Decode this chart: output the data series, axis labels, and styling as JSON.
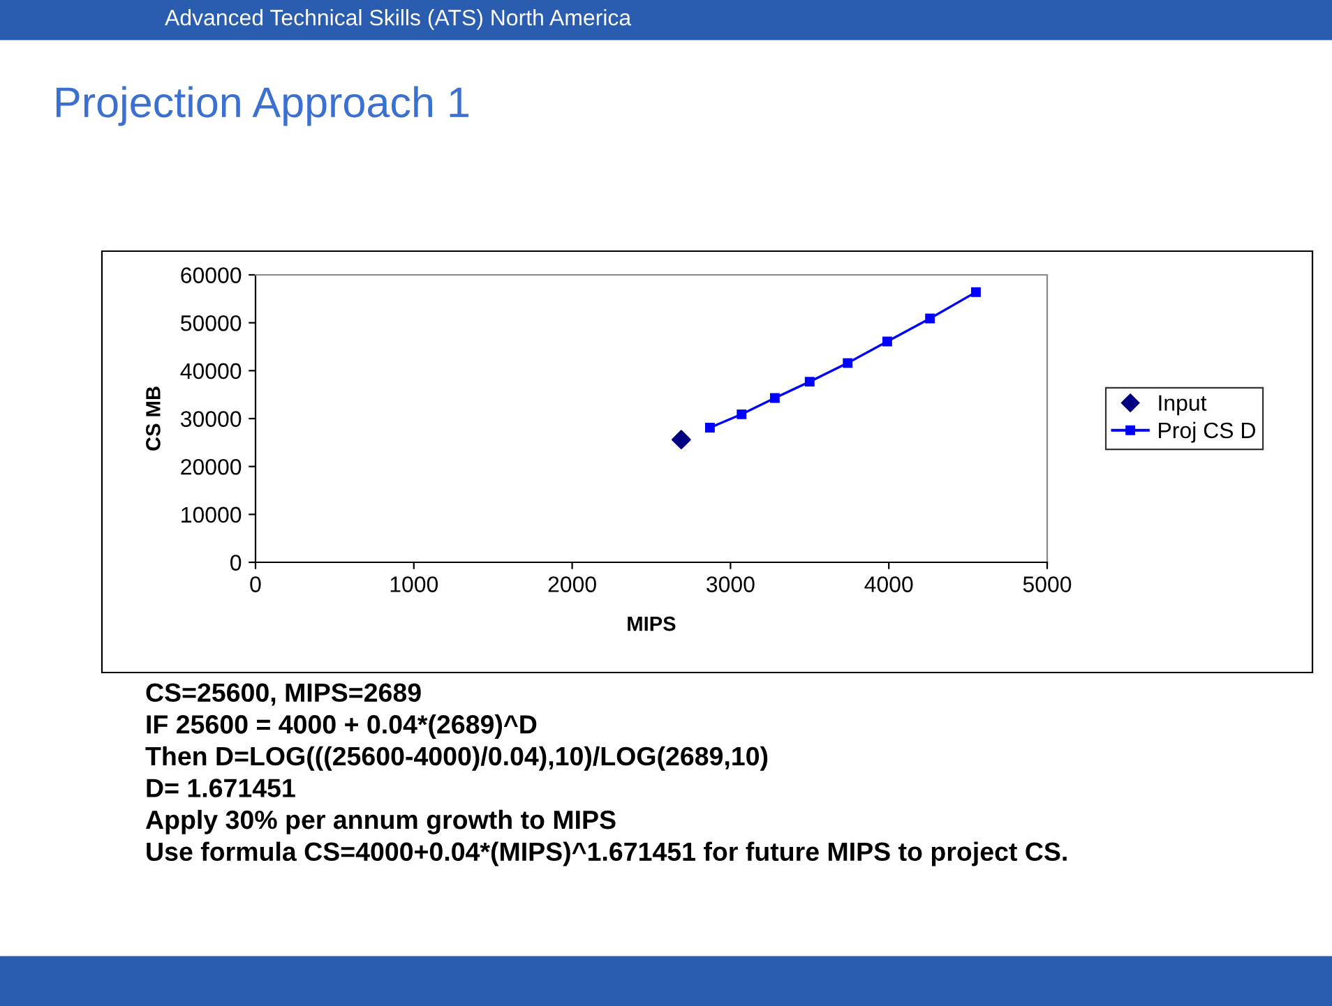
{
  "chart_data": {
    "type": "scatter",
    "subtitle": "Advanced Technical Skills (ATS) North America",
    "title": "Projection Approach 1",
    "xlabel": "MIPS",
    "ylabel": "CS MB",
    "xlim": [
      0,
      5000
    ],
    "xticks": [
      0,
      1000,
      2000,
      3000,
      4000,
      5000
    ],
    "ylim": [
      0,
      60000
    ],
    "yticks": [
      0,
      10000,
      20000,
      30000,
      40000,
      50000,
      60000
    ],
    "grid": false,
    "legend": "right",
    "series": [
      {
        "name": "Input",
        "marker": "diamond",
        "color": "#000080",
        "x": [
          2689
        ],
        "values": [
          25600
        ]
      },
      {
        "name": "Proj CS D",
        "type": "line",
        "marker": "square",
        "line_style": "solid",
        "color": "#0000ff",
        "x": [
          2870,
          3070,
          3280,
          3500,
          3740,
          3990,
          4260,
          4550
        ],
        "values": [
          28100,
          30900,
          34300,
          37700,
          41600,
          46100,
          50900,
          56400
        ]
      }
    ],
    "annotations": [
      "CS=25600, MIPS=2689",
      "IF 25600 = 4000 + 0.04*(2689)^D",
      "Then D=LOG(((25600-4000)/0.04),10)/LOG(2689,10)",
      "D= 1.671451",
      "Apply 30% per annum growth to MIPS",
      "Use formula CS=4000+0.04*(MIPS)^1.671451 for future MIPS to project CS."
    ]
  }
}
